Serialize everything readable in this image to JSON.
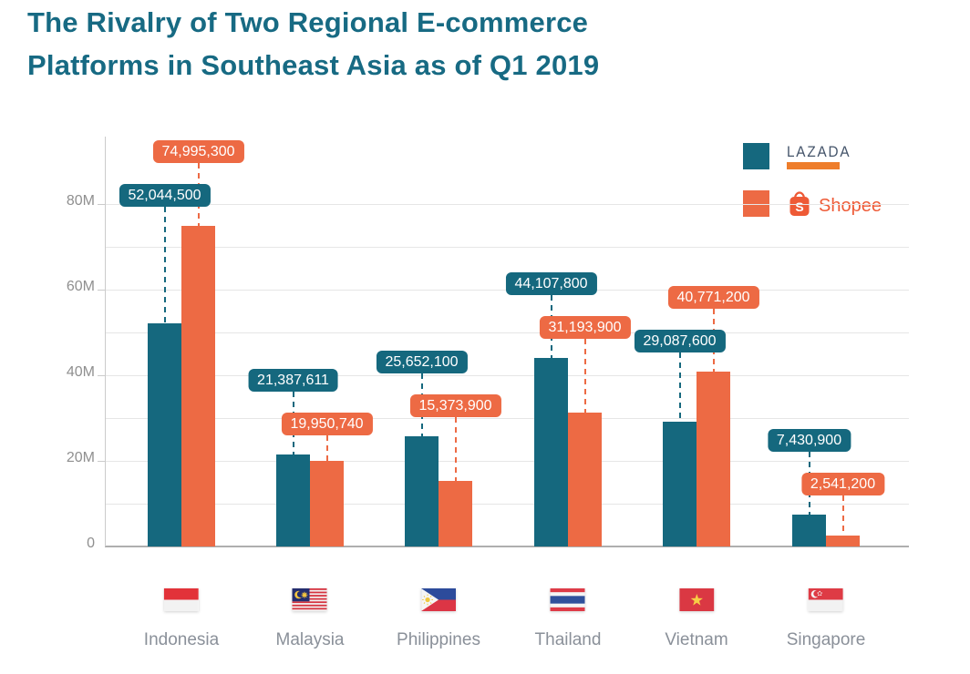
{
  "header": {
    "title_lines": [
      "The Rivalry of Two Regional E-commerce",
      "Platforms in Southeast Asia as of Q1 2019"
    ]
  },
  "theme": {
    "title_color": "#176A83",
    "lazada_teal": "#15687E",
    "shopee_orange": "#ED6A44",
    "lazada_logo_text_color": "#44546A",
    "lazada_logo_underline_color": "#EE7D2B",
    "shopee_logo_color": "#EE5A36",
    "axis_label_color": "#8F8F8F",
    "category_label_color": "#8A9099",
    "gridline_color": "#E6E6E6"
  },
  "legend": {
    "items": [
      {
        "name": "Lazada",
        "logo_text": "LAZADA",
        "color": "#15687E"
      },
      {
        "name": "Shopee",
        "logo_text": "Shopee",
        "color": "#ED6A44"
      }
    ]
  },
  "chart_data": {
    "type": "bar",
    "title": "The Rivalry of Two Regional E-commerce Platforms in Southeast Asia as of Q1 2019",
    "categories": [
      "Indonesia",
      "Malaysia",
      "Philippines",
      "Thailand",
      "Vietnam",
      "Singapore"
    ],
    "series": [
      {
        "name": "LAZADA",
        "color": "#15687E",
        "values": [
          52044500,
          21387611,
          25652100,
          44107800,
          29087600,
          7430900
        ]
      },
      {
        "name": "Shopee",
        "color": "#ED6A44",
        "values": [
          74995300,
          19950740,
          15373900,
          31193900,
          40771200,
          2541200
        ]
      }
    ],
    "data_labels": [
      [
        "52,044,500",
        "21,387,611",
        "25,652,100",
        "44,107,800",
        "29,087,600",
        "7,430,900"
      ],
      [
        "74,995,300",
        "19,950,740",
        "15,373,900",
        "31,193,900",
        "40,771,200",
        "2,541,200"
      ]
    ],
    "xlabel": "",
    "ylabel": "",
    "yaxis": {
      "min": 0,
      "max": 80000000,
      "gridline_interval": 10000000,
      "label_interval": 20000000,
      "tick_labels": [
        "0",
        "20M",
        "40M",
        "60M",
        "80M"
      ]
    },
    "grid": true,
    "legend_position": "top-right",
    "data_label_style": "rounded-pill-with-dashed-leader"
  }
}
